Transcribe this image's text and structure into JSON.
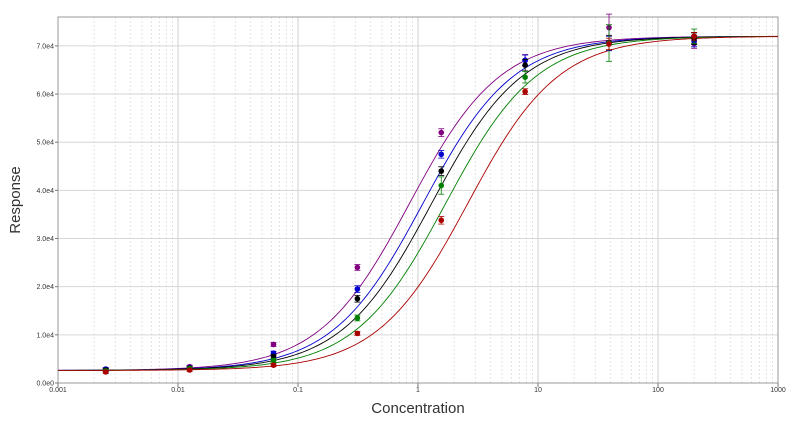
{
  "chart_data": {
    "type": "scatter",
    "title": "",
    "xlabel": "Concentration",
    "ylabel": "Response",
    "xscale": "log",
    "xlim": [
      0.001,
      1000
    ],
    "ylim": [
      0,
      76000
    ],
    "grid": true,
    "legend": "none",
    "x_ticks": [
      {
        "value": 0.001,
        "label": "0.001"
      },
      {
        "value": 0.01,
        "label": "0.01"
      },
      {
        "value": 0.1,
        "label": "0.1"
      },
      {
        "value": 1,
        "label": "1"
      },
      {
        "value": 10,
        "label": "10"
      },
      {
        "value": 100,
        "label": "100"
      },
      {
        "value": 1000,
        "label": "1000"
      }
    ],
    "y_ticks": [
      {
        "value": 0,
        "label": "0.0e0"
      },
      {
        "value": 10000,
        "label": "1.0e4"
      },
      {
        "value": 20000,
        "label": "2.0e4"
      },
      {
        "value": 30000,
        "label": "3.0e4"
      },
      {
        "value": 40000,
        "label": "4.0e4"
      },
      {
        "value": 50000,
        "label": "5.0e4"
      },
      {
        "value": 60000,
        "label": "6.0e4"
      },
      {
        "value": 70000,
        "label": "7.0e4"
      }
    ],
    "x": [
      0.0025,
      0.0125,
      0.0625,
      0.3125,
      1.5625,
      7.8125,
      39.06,
      200
    ],
    "series": [
      {
        "color": "#800080",
        "values": [
          2800,
          3400,
          8000,
          24000,
          52000,
          67000,
          73800,
          70500
        ],
        "errors": [
          300,
          300,
          400,
          600,
          800,
          1200,
          2800,
          1000
        ],
        "curve": {
          "bottom": 2600,
          "top": 72000,
          "ec50": 0.85,
          "hill": 1.15
        }
      },
      {
        "color": "#0000cc",
        "values": [
          2900,
          3200,
          6200,
          19500,
          47500,
          67000,
          70500,
          71000
        ],
        "errors": [
          300,
          300,
          400,
          700,
          800,
          1100,
          1500,
          1200
        ],
        "curve": {
          "bottom": 2600,
          "top": 72000,
          "ec50": 1.1,
          "hill": 1.15
        }
      },
      {
        "color": "#000000",
        "values": [
          2700,
          3100,
          5500,
          17500,
          44000,
          66000,
          70700,
          71500
        ],
        "errors": [
          300,
          300,
          400,
          700,
          900,
          1200,
          1500,
          1200
        ],
        "curve": {
          "bottom": 2600,
          "top": 72000,
          "ec50": 1.3,
          "hill": 1.15
        }
      },
      {
        "color": "#008000",
        "values": [
          2500,
          3000,
          4700,
          13500,
          41000,
          63500,
          70600,
          72000
        ],
        "errors": [
          300,
          300,
          400,
          600,
          1800,
          1200,
          3800,
          1500
        ],
        "curve": {
          "bottom": 2600,
          "top": 72000,
          "ec50": 1.7,
          "hill": 1.15
        }
      },
      {
        "color": "#aa0000",
        "values": [
          2300,
          2700,
          3700,
          10300,
          33800,
          60500,
          70400,
          72000
        ],
        "errors": [
          300,
          300,
          300,
          400,
          800,
          600,
          1200,
          800
        ],
        "curve": {
          "bottom": 2600,
          "top": 72000,
          "ec50": 2.6,
          "hill": 1.15
        }
      }
    ]
  }
}
